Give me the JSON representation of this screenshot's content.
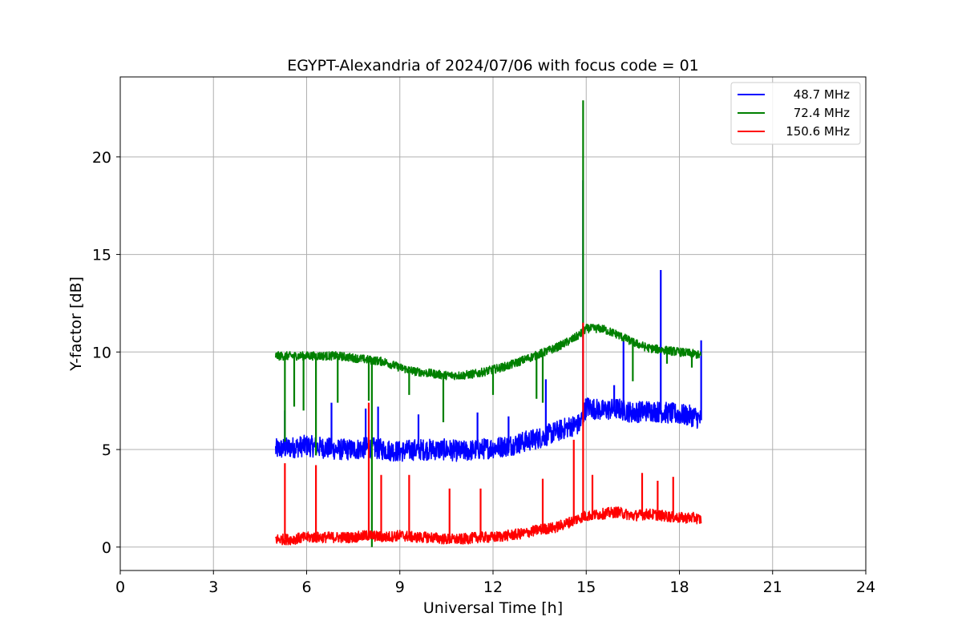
{
  "chart_data": {
    "type": "line",
    "title": "EGYPT-Alexandria of 2024/07/06 with focus code = 01",
    "xlabel": "Universal Time [h]",
    "ylabel": "Y-factor [dB]",
    "xlim": [
      0,
      24
    ],
    "ylim": [
      -1.2,
      24.1
    ],
    "xticks": [
      0,
      3,
      6,
      9,
      12,
      15,
      18,
      21,
      24
    ],
    "yticks": [
      0,
      5,
      10,
      15,
      20
    ],
    "grid": true,
    "legend_position": "top-right",
    "series": [
      {
        "name": "48.7 MHz",
        "color": "#0000ff",
        "x": [
          5.0,
          5.5,
          6.0,
          6.5,
          7.0,
          7.5,
          8.0,
          8.5,
          9.0,
          9.5,
          10.0,
          10.5,
          11.0,
          11.5,
          12.0,
          12.5,
          13.0,
          13.5,
          14.0,
          14.5,
          14.8,
          14.9,
          15.0,
          15.5,
          16.0,
          16.5,
          17.0,
          17.5,
          18.0,
          18.5,
          18.7
        ],
        "y": [
          5.0,
          5.1,
          5.2,
          5.1,
          5.0,
          5.0,
          5.1,
          5.0,
          4.9,
          5.0,
          5.0,
          5.0,
          4.9,
          5.0,
          5.1,
          5.2,
          5.4,
          5.6,
          5.9,
          6.2,
          6.3,
          18.0,
          7.2,
          7.0,
          7.1,
          6.9,
          7.0,
          6.9,
          6.8,
          6.7,
          6.5
        ],
        "spikes": [
          [
            5.3,
            7.0
          ],
          [
            6.8,
            7.4
          ],
          [
            7.9,
            7.1
          ],
          [
            8.3,
            7.2
          ],
          [
            9.6,
            6.8
          ],
          [
            11.5,
            6.9
          ],
          [
            12.5,
            6.7
          ],
          [
            13.7,
            8.6
          ],
          [
            14.9,
            18.8
          ],
          [
            15.9,
            8.3
          ],
          [
            16.2,
            10.6
          ],
          [
            17.4,
            14.2
          ],
          [
            18.7,
            10.6
          ]
        ]
      },
      {
        "name": "72.4 MHz",
        "color": "#008000",
        "x": [
          5.0,
          5.5,
          6.0,
          6.5,
          7.0,
          7.5,
          8.0,
          8.5,
          9.0,
          9.5,
          10.0,
          10.5,
          11.0,
          11.5,
          12.0,
          12.5,
          13.0,
          13.5,
          14.0,
          14.5,
          14.8,
          14.9,
          15.0,
          15.5,
          16.0,
          16.5,
          17.0,
          17.5,
          18.0,
          18.5,
          18.7
        ],
        "y": [
          9.8,
          9.8,
          9.8,
          9.8,
          9.8,
          9.7,
          9.6,
          9.5,
          9.2,
          9.0,
          8.9,
          8.8,
          8.8,
          8.9,
          9.1,
          9.3,
          9.6,
          9.9,
          10.2,
          10.6,
          10.9,
          22.0,
          11.2,
          11.2,
          10.9,
          10.5,
          10.2,
          10.1,
          10.0,
          9.9,
          9.8
        ],
        "spikes": [
          [
            5.3,
            5.4
          ],
          [
            5.6,
            7.2
          ],
          [
            5.9,
            7.0
          ],
          [
            6.3,
            4.7
          ],
          [
            7.0,
            7.4
          ],
          [
            8.0,
            7.5
          ],
          [
            8.1,
            0.0
          ],
          [
            9.3,
            7.8
          ],
          [
            10.4,
            6.4
          ],
          [
            12.0,
            7.8
          ],
          [
            13.4,
            7.6
          ],
          [
            13.6,
            7.4
          ],
          [
            14.9,
            22.9
          ],
          [
            16.5,
            8.5
          ],
          [
            17.6,
            9.4
          ],
          [
            18.4,
            9.2
          ]
        ]
      },
      {
        "name": "150.6 MHz",
        "color": "#ff0000",
        "x": [
          5.0,
          5.5,
          6.0,
          6.5,
          7.0,
          7.5,
          8.0,
          8.5,
          9.0,
          9.5,
          10.0,
          10.5,
          11.0,
          11.5,
          12.0,
          12.5,
          13.0,
          13.5,
          14.0,
          14.5,
          14.8,
          14.9,
          15.0,
          15.5,
          16.0,
          16.5,
          17.0,
          17.5,
          18.0,
          18.5,
          18.7
        ],
        "y": [
          0.4,
          0.4,
          0.5,
          0.5,
          0.5,
          0.5,
          0.6,
          0.5,
          0.6,
          0.5,
          0.5,
          0.4,
          0.4,
          0.5,
          0.5,
          0.6,
          0.7,
          0.9,
          1.0,
          1.3,
          1.5,
          10.5,
          1.6,
          1.7,
          1.8,
          1.6,
          1.7,
          1.6,
          1.5,
          1.5,
          1.4
        ],
        "spikes": [
          [
            5.3,
            4.3
          ],
          [
            6.3,
            4.2
          ],
          [
            8.0,
            7.4
          ],
          [
            8.4,
            3.7
          ],
          [
            9.3,
            3.7
          ],
          [
            10.6,
            3.0
          ],
          [
            11.6,
            3.0
          ],
          [
            13.6,
            3.5
          ],
          [
            14.6,
            5.5
          ],
          [
            14.9,
            11.5
          ],
          [
            15.2,
            3.7
          ],
          [
            16.8,
            3.8
          ],
          [
            17.3,
            3.4
          ],
          [
            17.8,
            3.6
          ]
        ]
      }
    ]
  }
}
